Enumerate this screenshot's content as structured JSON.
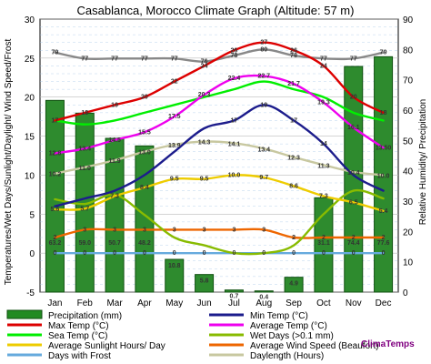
{
  "chart_data": {
    "type": "combo",
    "title": "Casablanca, Morocco Climate Graph (Altitude: 57 m)",
    "ylabel_left": "Temperatures/Wet Days/Sunlight/Daylight/ Wind Speed/Frost",
    "ylabel_right": "Relative Humidity/ Precipitation",
    "ylim_left": [
      -5,
      30
    ],
    "ylim_right": [
      0,
      90
    ],
    "yticks_left": [
      "-5",
      "0",
      "5",
      "10",
      "15",
      "20",
      "25",
      "30"
    ],
    "yticks_right": [
      "0",
      "10",
      "20",
      "30",
      "40",
      "50",
      "60",
      "70",
      "80",
      "90"
    ],
    "categories": [
      "Jan",
      "Feb",
      "Mar",
      "Apr",
      "May",
      "Jun",
      "Jul",
      "Aug",
      "Sep",
      "Oct",
      "Nov",
      "Dec"
    ],
    "bars": {
      "name": "Precipitation (mm)",
      "axis": "right",
      "values": [
        63.2,
        59.0,
        50.7,
        48.2,
        10.8,
        5.8,
        0.7,
        0.4,
        4.9,
        31.1,
        74.4,
        77.6
      ]
    },
    "series": [
      {
        "name": "Max Temp (°C)",
        "color": "#dd0000",
        "axis": "left",
        "values": [
          17,
          18,
          19,
          20,
          22,
          24,
          26,
          27,
          26,
          24,
          20,
          18
        ]
      },
      {
        "name": "Min Temp (°C)",
        "color": "#1c1c8c",
        "axis": "left",
        "values": [
          6,
          7,
          8,
          10,
          13,
          16,
          17,
          19,
          17,
          14,
          10,
          8
        ]
      },
      {
        "name": "Average Temp (°C)",
        "color": "#ee00ee",
        "axis": "left",
        "values": [
          12.8,
          13.4,
          14.5,
          15.5,
          17.5,
          20.3,
          22.4,
          22.7,
          21.7,
          19.3,
          16.1,
          13.5
        ]
      },
      {
        "name": "Sea Temp (°C)",
        "color": "#00ee00",
        "axis": "left",
        "values": [
          17,
          16.5,
          17,
          18,
          19,
          20,
          21,
          22,
          21,
          20,
          18,
          17
        ]
      },
      {
        "name": "Wet Days (>0.1 mm)",
        "color": "#88bb00",
        "axis": "left",
        "values": [
          6.9,
          6.3,
          7.5,
          4.9,
          2,
          1,
          0,
          0,
          1,
          5,
          8,
          7
        ]
      },
      {
        "name": "Average Sunlight Hours/ Day",
        "color": "#eecc00",
        "axis": "left",
        "values": [
          5.6,
          5.7,
          7.3,
          8.4,
          9.5,
          9.5,
          10.0,
          9.7,
          8.6,
          7.3,
          6.5,
          5.4
        ]
      },
      {
        "name": "Average Wind Speed (Beaufort)",
        "color": "#ee6600",
        "axis": "left",
        "values": [
          2,
          3,
          3,
          3,
          3,
          3,
          3,
          3,
          2,
          2,
          2,
          2
        ]
      },
      {
        "name": "Days with Frost",
        "color": "#66aadd",
        "axis": "left",
        "values": [
          0,
          0,
          0,
          0,
          0,
          0,
          0,
          0,
          0,
          0,
          0,
          0
        ]
      },
      {
        "name": "Daylength (Hours)",
        "color": "#c8c8a0",
        "axis": "left",
        "values": [
          10.2,
          11.0,
          11.9,
          13.0,
          13.9,
          14.3,
          14.1,
          13.4,
          12.3,
          11.3,
          10.4,
          10.0
        ]
      },
      {
        "name": "Relative Humidity",
        "color": "#888888",
        "axis": "right",
        "values": [
          79,
          77,
          77,
          77,
          77,
          76,
          78,
          80,
          78,
          77,
          77,
          79
        ]
      }
    ],
    "grid": true,
    "legend_position": "bottom"
  },
  "labels": {
    "humidity": [
      "79",
      "77",
      "77",
      "77",
      "77",
      "76",
      "78",
      "80",
      "78",
      "77",
      "77",
      "79"
    ],
    "maxtemp": [
      "17",
      "18",
      "19",
      "20",
      "22",
      "24",
      "26",
      "27",
      "26",
      "24",
      "20",
      "18"
    ],
    "avgtemp": [
      "12.8",
      "13.4",
      "14.5",
      "15.5",
      "17.5",
      "20.3",
      "22.4",
      "22.7",
      "21.7",
      "19.3",
      "16.1",
      "13.50"
    ],
    "mintemp": [
      "",
      "",
      "",
      "",
      "",
      "",
      "17",
      "19",
      "17",
      "14",
      "",
      ""
    ],
    "daylength": [
      "10.2",
      "11.0",
      "11.9",
      "13.0",
      "13.9",
      "14.3",
      "14.1",
      "13.4",
      "12.3",
      "11.3",
      "10.4",
      "10.0"
    ],
    "sunlight": [
      "5.6",
      "5.7",
      "7.3",
      "8.4",
      "9.5",
      "9.5",
      "10.0",
      "9.7",
      "8.6",
      "7.3",
      "6.5",
      "5.4"
    ],
    "wind": [
      "2",
      "3",
      "3",
      "3",
      "3",
      "3",
      "3",
      "3",
      "2",
      "2",
      "2",
      "2"
    ],
    "frost": [
      "0",
      "0",
      "0",
      "0",
      "0",
      "0",
      "0",
      "0",
      "0",
      "0",
      "0",
      "0"
    ],
    "precip": [
      "63.2",
      "59.0",
      "50.7",
      "48.2",
      "10.8",
      "5.8",
      "0.7",
      "0.4",
      "4.9",
      "31.1",
      "74.4",
      "77.6"
    ]
  },
  "legend": [
    {
      "label": "Precipitation (mm)",
      "color": "#228b22",
      "kind": "box"
    },
    {
      "label": "Min Temp (°C)",
      "color": "#1c1c8c",
      "kind": "line"
    },
    {
      "label": "Max Temp (°C)",
      "color": "#dd0000",
      "kind": "line"
    },
    {
      "label": "Average Temp (°C)",
      "color": "#ee00ee",
      "kind": "line"
    },
    {
      "label": "Sea Temp (°C)",
      "color": "#00ee00",
      "kind": "line"
    },
    {
      "label": "Wet Days (>0.1 mm)",
      "color": "#88bb00",
      "kind": "line"
    },
    {
      "label": "Average Sunlight Hours/ Day",
      "color": "#eecc00",
      "kind": "line"
    },
    {
      "label": "Average Wind Speed (Beaufort)",
      "color": "#ee6600",
      "kind": "line"
    },
    {
      "label": "Days with Frost",
      "color": "#66aadd",
      "kind": "line"
    },
    {
      "label": "Daylength (Hours)",
      "color": "#c8c8a0",
      "kind": "line"
    }
  ],
  "brand": "ClimaTemps"
}
